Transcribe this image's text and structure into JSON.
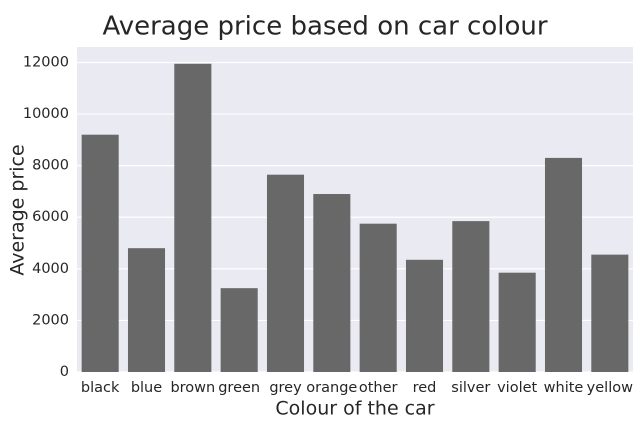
{
  "chart_data": {
    "type": "bar",
    "title": "Average price based on car colour",
    "xlabel": "Colour of the car",
    "ylabel": "Average price",
    "categories": [
      "black",
      "blue",
      "brown",
      "green",
      "grey",
      "orange",
      "other",
      "red",
      "silver",
      "violet",
      "white",
      "yellow"
    ],
    "values": [
      9200,
      4800,
      11950,
      3250,
      7650,
      6900,
      5750,
      4350,
      5850,
      3850,
      8300,
      4550
    ],
    "ylim": [
      0,
      12600
    ],
    "yticks": [
      0,
      2000,
      4000,
      6000,
      8000,
      10000,
      12000
    ],
    "grid": true,
    "colors": {
      "bar": "#686868",
      "plot_background": "#eaeaf2",
      "grid": "#ffffff"
    }
  }
}
